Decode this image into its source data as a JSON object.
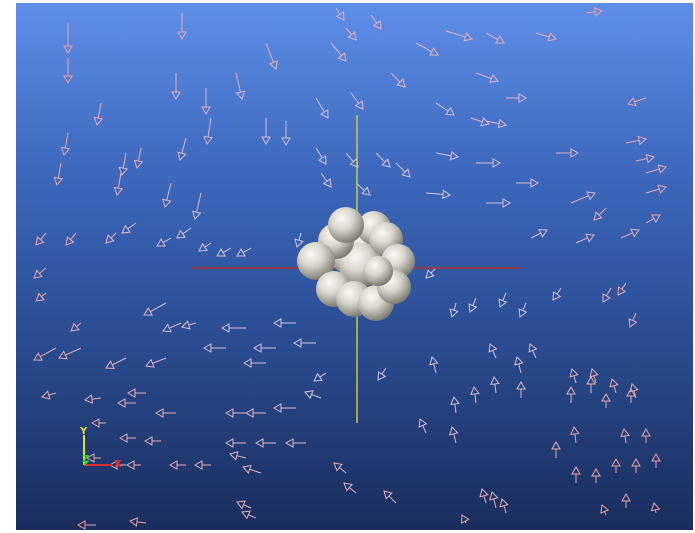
{
  "viewport": {
    "background_top": "#5f8ee9",
    "background_bottom": "#1a2d5d"
  },
  "cluster": {
    "sphere_color": "#d8d6cc",
    "sphere_shade": "#7a786e"
  },
  "center_axes": {
    "horizontal_color": "#b0302c",
    "vertical_color": "#d4d040"
  },
  "orientation_gizmo": {
    "x_label": "X",
    "y_label": "Y",
    "z_label": "Z",
    "x_color": "#e03030",
    "y_color": "#e0e030",
    "z_color": "#30d030"
  },
  "glyphs": {
    "near_color": "#c8d6ff",
    "far_color": "#f0a0a0",
    "icon": "cone-arrow-glyph"
  }
}
